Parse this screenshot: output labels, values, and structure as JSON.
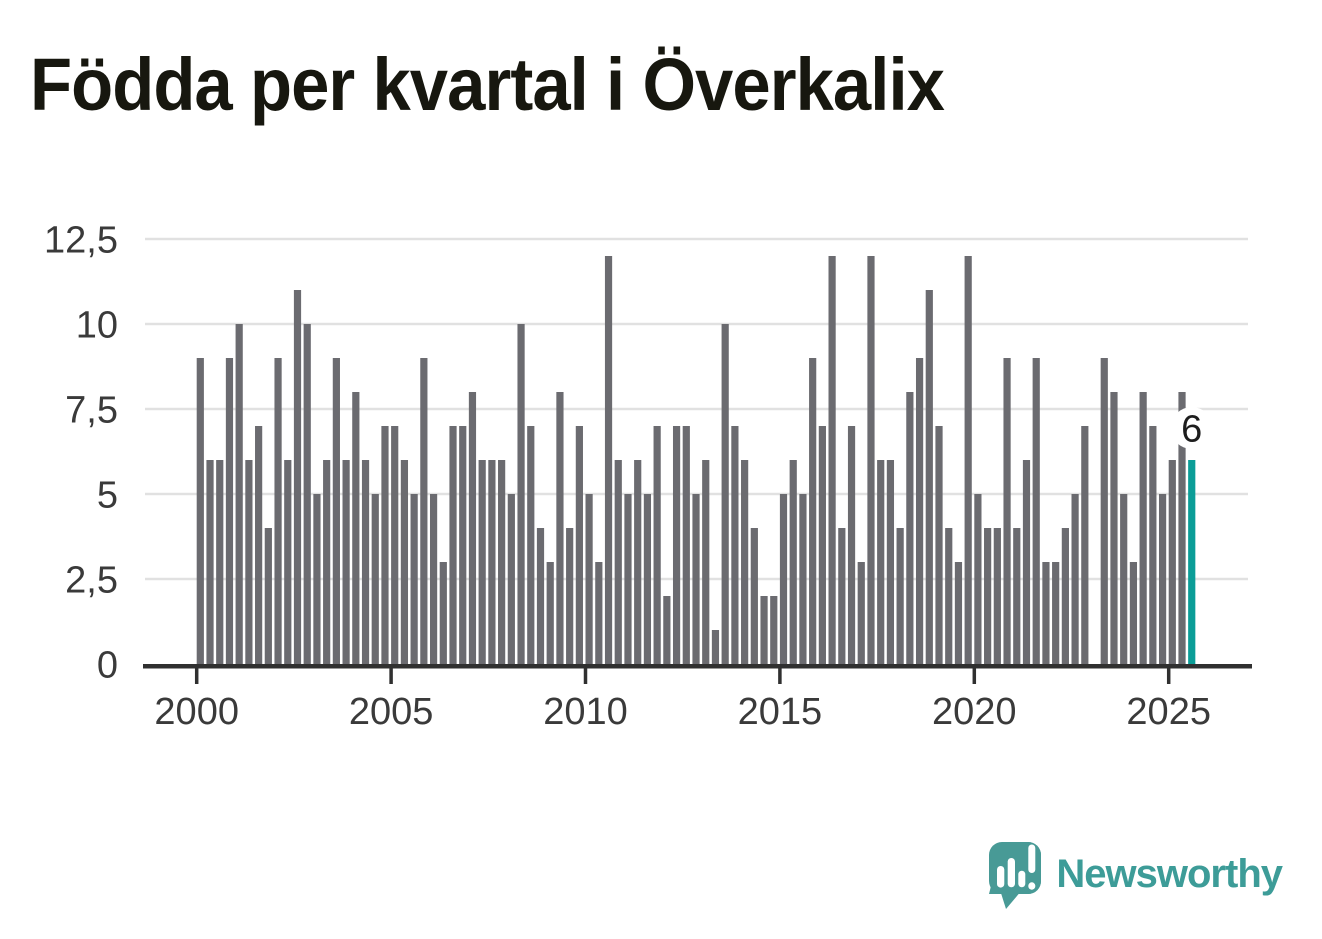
{
  "title": "Födda per kvartal i Överkalix",
  "brand": {
    "wordmark": "Newsworthy"
  },
  "colors": {
    "bar": "#6b6b70",
    "highlight": "#0b9d97",
    "grid": "#e1e1e1",
    "axis": "#303030",
    "axis_text": "#3a3a3a",
    "title_text": "#17170f",
    "brand_teal": "#3d9c98",
    "label_text": "#1d1d1d",
    "label_halo": "#ffffff"
  },
  "chart_data": {
    "type": "bar",
    "title": "Födda per kvartal i Överkalix",
    "x_tick_labels": [
      "2000",
      "2005",
      "2010",
      "2015",
      "2020",
      "2025"
    ],
    "y_tick_values": [
      0,
      2.5,
      5,
      7.5,
      10,
      12.5
    ],
    "y_tick_labels": [
      "0",
      "2,5",
      "5",
      "7,5",
      "10",
      "12,5"
    ],
    "ylim": [
      0,
      12.5
    ],
    "grid": true,
    "legend": "none",
    "periodicity": "quarterly",
    "values_by_year": {
      "2000": [
        9,
        6,
        6,
        9
      ],
      "2001": [
        10,
        6,
        7,
        4
      ],
      "2002": [
        9,
        6,
        11,
        10
      ],
      "2003": [
        5,
        6,
        9,
        6
      ],
      "2004": [
        8,
        6,
        5,
        7
      ],
      "2005": [
        7,
        6,
        5,
        9
      ],
      "2006": [
        5,
        3,
        7,
        7
      ],
      "2007": [
        8,
        6,
        6,
        6
      ],
      "2008": [
        5,
        10,
        7,
        4
      ],
      "2009": [
        3,
        8,
        4,
        7
      ],
      "2010": [
        5,
        3,
        12,
        6
      ],
      "2011": [
        5,
        6,
        5,
        7
      ],
      "2012": [
        2,
        7,
        7,
        5
      ],
      "2013": [
        6,
        1,
        10,
        7
      ],
      "2014": [
        6,
        4,
        2,
        2
      ],
      "2015": [
        5,
        6,
        5,
        9
      ],
      "2016": [
        7,
        12,
        4,
        7
      ],
      "2017": [
        3,
        12,
        6,
        6
      ],
      "2018": [
        4,
        8,
        9,
        11
      ],
      "2019": [
        7,
        4,
        3,
        12
      ],
      "2020": [
        5,
        4,
        4,
        9
      ],
      "2021": [
        4,
        6,
        9,
        3
      ],
      "2022": [
        3,
        4,
        5,
        7
      ],
      "2023": [
        0,
        9,
        8,
        5
      ],
      "2024": [
        3,
        8,
        7,
        5
      ],
      "2025": [
        6,
        8,
        6
      ]
    },
    "highlight_last_bar": true,
    "highlight_value_label": "6"
  }
}
